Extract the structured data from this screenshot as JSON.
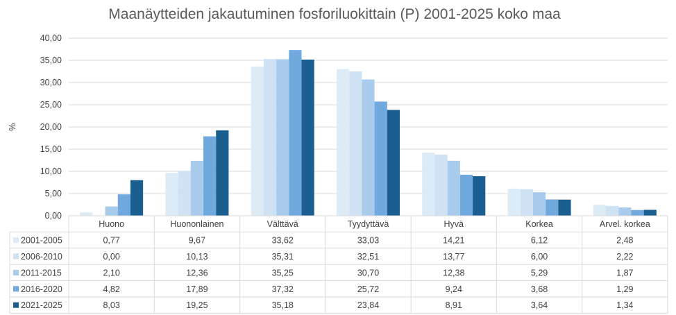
{
  "chart_data": {
    "type": "bar",
    "title": "Maanäytteiden jakautuminen fosforiluokittain (P) 2001-2025 koko maa",
    "ylabel": "%",
    "xlabel": "",
    "ylim": [
      0,
      40
    ],
    "yticks": [
      "0,00",
      "5,00",
      "10,00",
      "15,00",
      "20,00",
      "25,00",
      "30,00",
      "35,00",
      "40,00"
    ],
    "grid": true,
    "legend": "data-table",
    "categories": [
      "Huono",
      "Huononlainen",
      "Välttävä",
      "Tyydyttävä",
      "Hyvä",
      "Korkea",
      "Arvel. korkea"
    ],
    "series": [
      {
        "name": "2001-2005",
        "color": "#ddebf7",
        "values": [
          0.77,
          9.67,
          33.62,
          33.03,
          14.21,
          6.12,
          2.48
        ],
        "labels": [
          "0,77",
          "9,67",
          "33,62",
          "33,03",
          "14,21",
          "6,12",
          "2,48"
        ]
      },
      {
        "name": "2006-2010",
        "color": "#cfe2f3",
        "values": [
          0.0,
          10.13,
          35.31,
          32.51,
          13.77,
          6.0,
          2.22
        ],
        "labels": [
          "0,00",
          "10,13",
          "35,31",
          "32,51",
          "13,77",
          "6,00",
          "2,22"
        ]
      },
      {
        "name": "2011-2015",
        "color": "#a9cbec",
        "values": [
          2.1,
          12.36,
          35.25,
          30.7,
          12.38,
          5.29,
          1.87
        ],
        "labels": [
          "2,10",
          "12,36",
          "35,25",
          "30,70",
          "12,38",
          "5,29",
          "1,87"
        ]
      },
      {
        "name": "2016-2020",
        "color": "#6fa9de",
        "values": [
          4.82,
          17.89,
          37.32,
          25.72,
          9.24,
          3.68,
          1.29
        ],
        "labels": [
          "4,82",
          "17,89",
          "37,32",
          "25,72",
          "9,24",
          "3,68",
          "1,29"
        ]
      },
      {
        "name": "2021-2025",
        "color": "#1b5f91",
        "values": [
          8.03,
          19.25,
          35.18,
          23.84,
          8.91,
          3.64,
          1.34
        ],
        "labels": [
          "8,03",
          "19,25",
          "35,18",
          "23,84",
          "8,91",
          "3,64",
          "1,34"
        ]
      }
    ]
  }
}
